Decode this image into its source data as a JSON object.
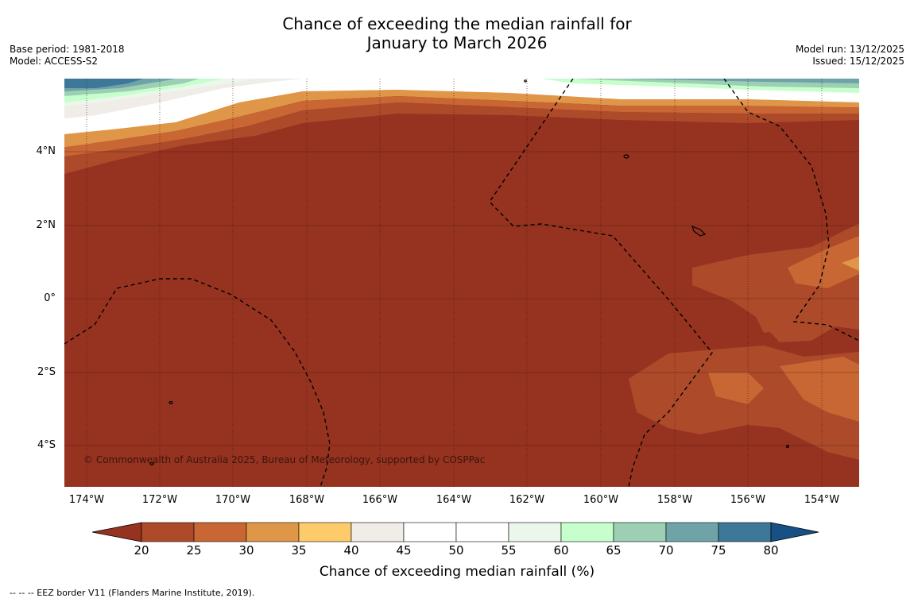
{
  "title": {
    "line1": "Chance of exceeding the median rainfall for",
    "line2": "January to March 2026"
  },
  "meta": {
    "base_period": "Base period: 1981-2018",
    "model": "Model: ACCESS-S2",
    "model_run": "Model run: 13/12/2025",
    "issued": "Issued: 15/12/2025"
  },
  "map": {
    "latitude_labels": [
      "4°N",
      "2°N",
      "0°",
      "2°S",
      "4°S"
    ],
    "longitude_labels": [
      "174°W",
      "172°W",
      "170°W",
      "168°W",
      "166°W",
      "164°W",
      "162°W",
      "160°W",
      "158°W",
      "156°W",
      "154°W"
    ],
    "copyright": "© Commonwealth of Australia 2025, Bureau of Meteorology, supported by COSPPac"
  },
  "colorbar": {
    "ticks": [
      "20",
      "25",
      "30",
      "35",
      "40",
      "45",
      "50",
      "55",
      "60",
      "65",
      "70",
      "75",
      "80"
    ],
    "label": "Chance of exceeding median rainfall (%)",
    "colors": [
      "#963220",
      "#ac4a2a",
      "#c86634",
      "#e09648",
      "#fecb6a",
      "#f0ece8",
      "#ffffff",
      "#ffffff",
      "#eaf7ea",
      "#c6ffcc",
      "#9ccfb4",
      "#6ea4a8",
      "#3e7898",
      "#165084"
    ]
  },
  "legend": {
    "eez": "--  --  -- EEZ border V11 (Flanders Marine Institute, 2019)."
  }
}
